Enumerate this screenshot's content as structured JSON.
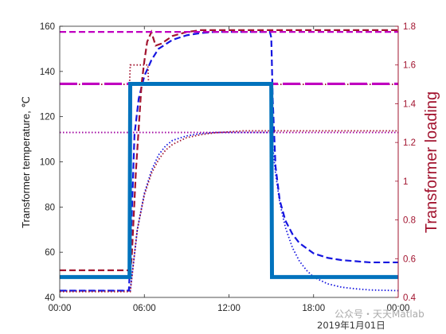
{
  "chart_data": {
    "type": "line",
    "xlabel_date": "2019年1月01日",
    "left_axis": {
      "label": "Transformer temperature, ℃",
      "ylim": [
        40,
        160
      ],
      "ticks": [
        40,
        60,
        80,
        100,
        120,
        140,
        160
      ]
    },
    "right_axis": {
      "label": "Transformer loading",
      "ylim": [
        0.4,
        1.8
      ],
      "ticks": [
        "0.4",
        "0.6",
        "0.8",
        "1",
        "1.2",
        "1.4",
        "1.6",
        "1.8"
      ],
      "color": "#a2142f"
    },
    "x_axis": {
      "xlim_hours": [
        0,
        24
      ],
      "tick_hours": [
        0,
        6,
        12,
        18,
        24
      ],
      "tick_labels": [
        "00:00",
        "06:00",
        "12:00",
        "18:00",
        "00:00"
      ]
    },
    "series": [
      {
        "axis": "left",
        "color": "#0072bd",
        "style": "solid",
        "x": [
          0,
          4.95,
          5.0,
          15.0,
          15.05,
          24
        ],
        "y": [
          49,
          49,
          134.5,
          134.5,
          49,
          49
        ]
      },
      {
        "axis": "left",
        "color": "#1515e0",
        "style": "dash",
        "x": [
          0,
          4.9,
          5.0,
          5.3,
          5.6,
          6.0,
          6.5,
          7.0,
          8.0,
          9.0,
          10.0,
          11.0,
          12.0,
          14.0,
          14.9,
          15.0,
          15.1,
          15.3,
          15.6,
          16.0,
          16.5,
          17.0,
          18.0,
          19.0,
          20.0,
          21.0,
          22.0,
          24.0
        ],
        "y": [
          43,
          43,
          56,
          112,
          128,
          138,
          145,
          150,
          154,
          156,
          157,
          157.5,
          157.5,
          157.5,
          157.5,
          155,
          128,
          98,
          83,
          74,
          68,
          64,
          59.5,
          57.5,
          56.5,
          56,
          55.5,
          55.5
        ]
      },
      {
        "axis": "left",
        "color": "#1515e0",
        "style": "dot",
        "x": [
          0,
          5.0,
          5.5,
          6.0,
          6.5,
          7.0,
          7.5,
          8.0,
          9.0,
          10.0,
          11.0,
          12.0,
          14.0,
          15.0,
          15.3,
          15.6,
          16.0,
          16.5,
          17.0,
          17.5,
          18.0,
          19.0,
          20.0,
          21.0,
          22.0,
          24.0
        ],
        "y": [
          43,
          43,
          70,
          86,
          96,
          103,
          107,
          109.5,
          111.5,
          112.5,
          113,
          113,
          113,
          113,
          95,
          82,
          71,
          62,
          56,
          52,
          49,
          46,
          44.5,
          43.8,
          43.3,
          43
        ]
      },
      {
        "axis": "right",
        "color": "#a2142f",
        "style": "dash",
        "x": [
          0,
          5.0,
          5.1,
          5.4,
          5.8,
          6.0,
          6.2,
          6.5,
          6.8,
          7.2,
          7.6,
          8.0,
          9.0,
          10.0,
          12.0,
          24.0
        ],
        "y": [
          0.54,
          0.54,
          0.6,
          1.05,
          1.5,
          1.62,
          1.72,
          1.77,
          1.7,
          1.71,
          1.73,
          1.75,
          1.77,
          1.78,
          1.78,
          1.78
        ]
      },
      {
        "axis": "right",
        "color": "#a2142f",
        "style": "dot",
        "x": [
          0,
          5.0,
          5.5,
          6.0,
          6.5,
          7.0,
          7.5,
          8.0,
          9.0,
          10.0,
          11.0,
          12.0,
          13.0,
          24.0
        ],
        "y": [
          0.43,
          0.43,
          0.75,
          0.93,
          1.04,
          1.11,
          1.16,
          1.19,
          1.225,
          1.24,
          1.25,
          1.255,
          1.26,
          1.26
        ]
      },
      {
        "axis": "right",
        "color": "#a2142f",
        "style": "dot",
        "x": [
          0,
          4.95,
          5.0,
          6.25,
          6.3,
          24
        ],
        "y": [
          1.5,
          1.5,
          1.6,
          1.6,
          1.5,
          1.5
        ]
      },
      {
        "axis": "left",
        "color": "#c000c0",
        "style": "longdash-thick",
        "x": [
          0,
          24
        ],
        "y": [
          134.5,
          134.5
        ]
      },
      {
        "axis": "left",
        "color": "#c000c0",
        "style": "dash",
        "x": [
          0,
          24
        ],
        "y": [
          157.5,
          157.5
        ]
      },
      {
        "axis": "left",
        "color": "#a000a0",
        "style": "dot",
        "x": [
          0,
          24
        ],
        "y": [
          113,
          113
        ]
      }
    ]
  },
  "watermark": "公众号・天天Matlab"
}
